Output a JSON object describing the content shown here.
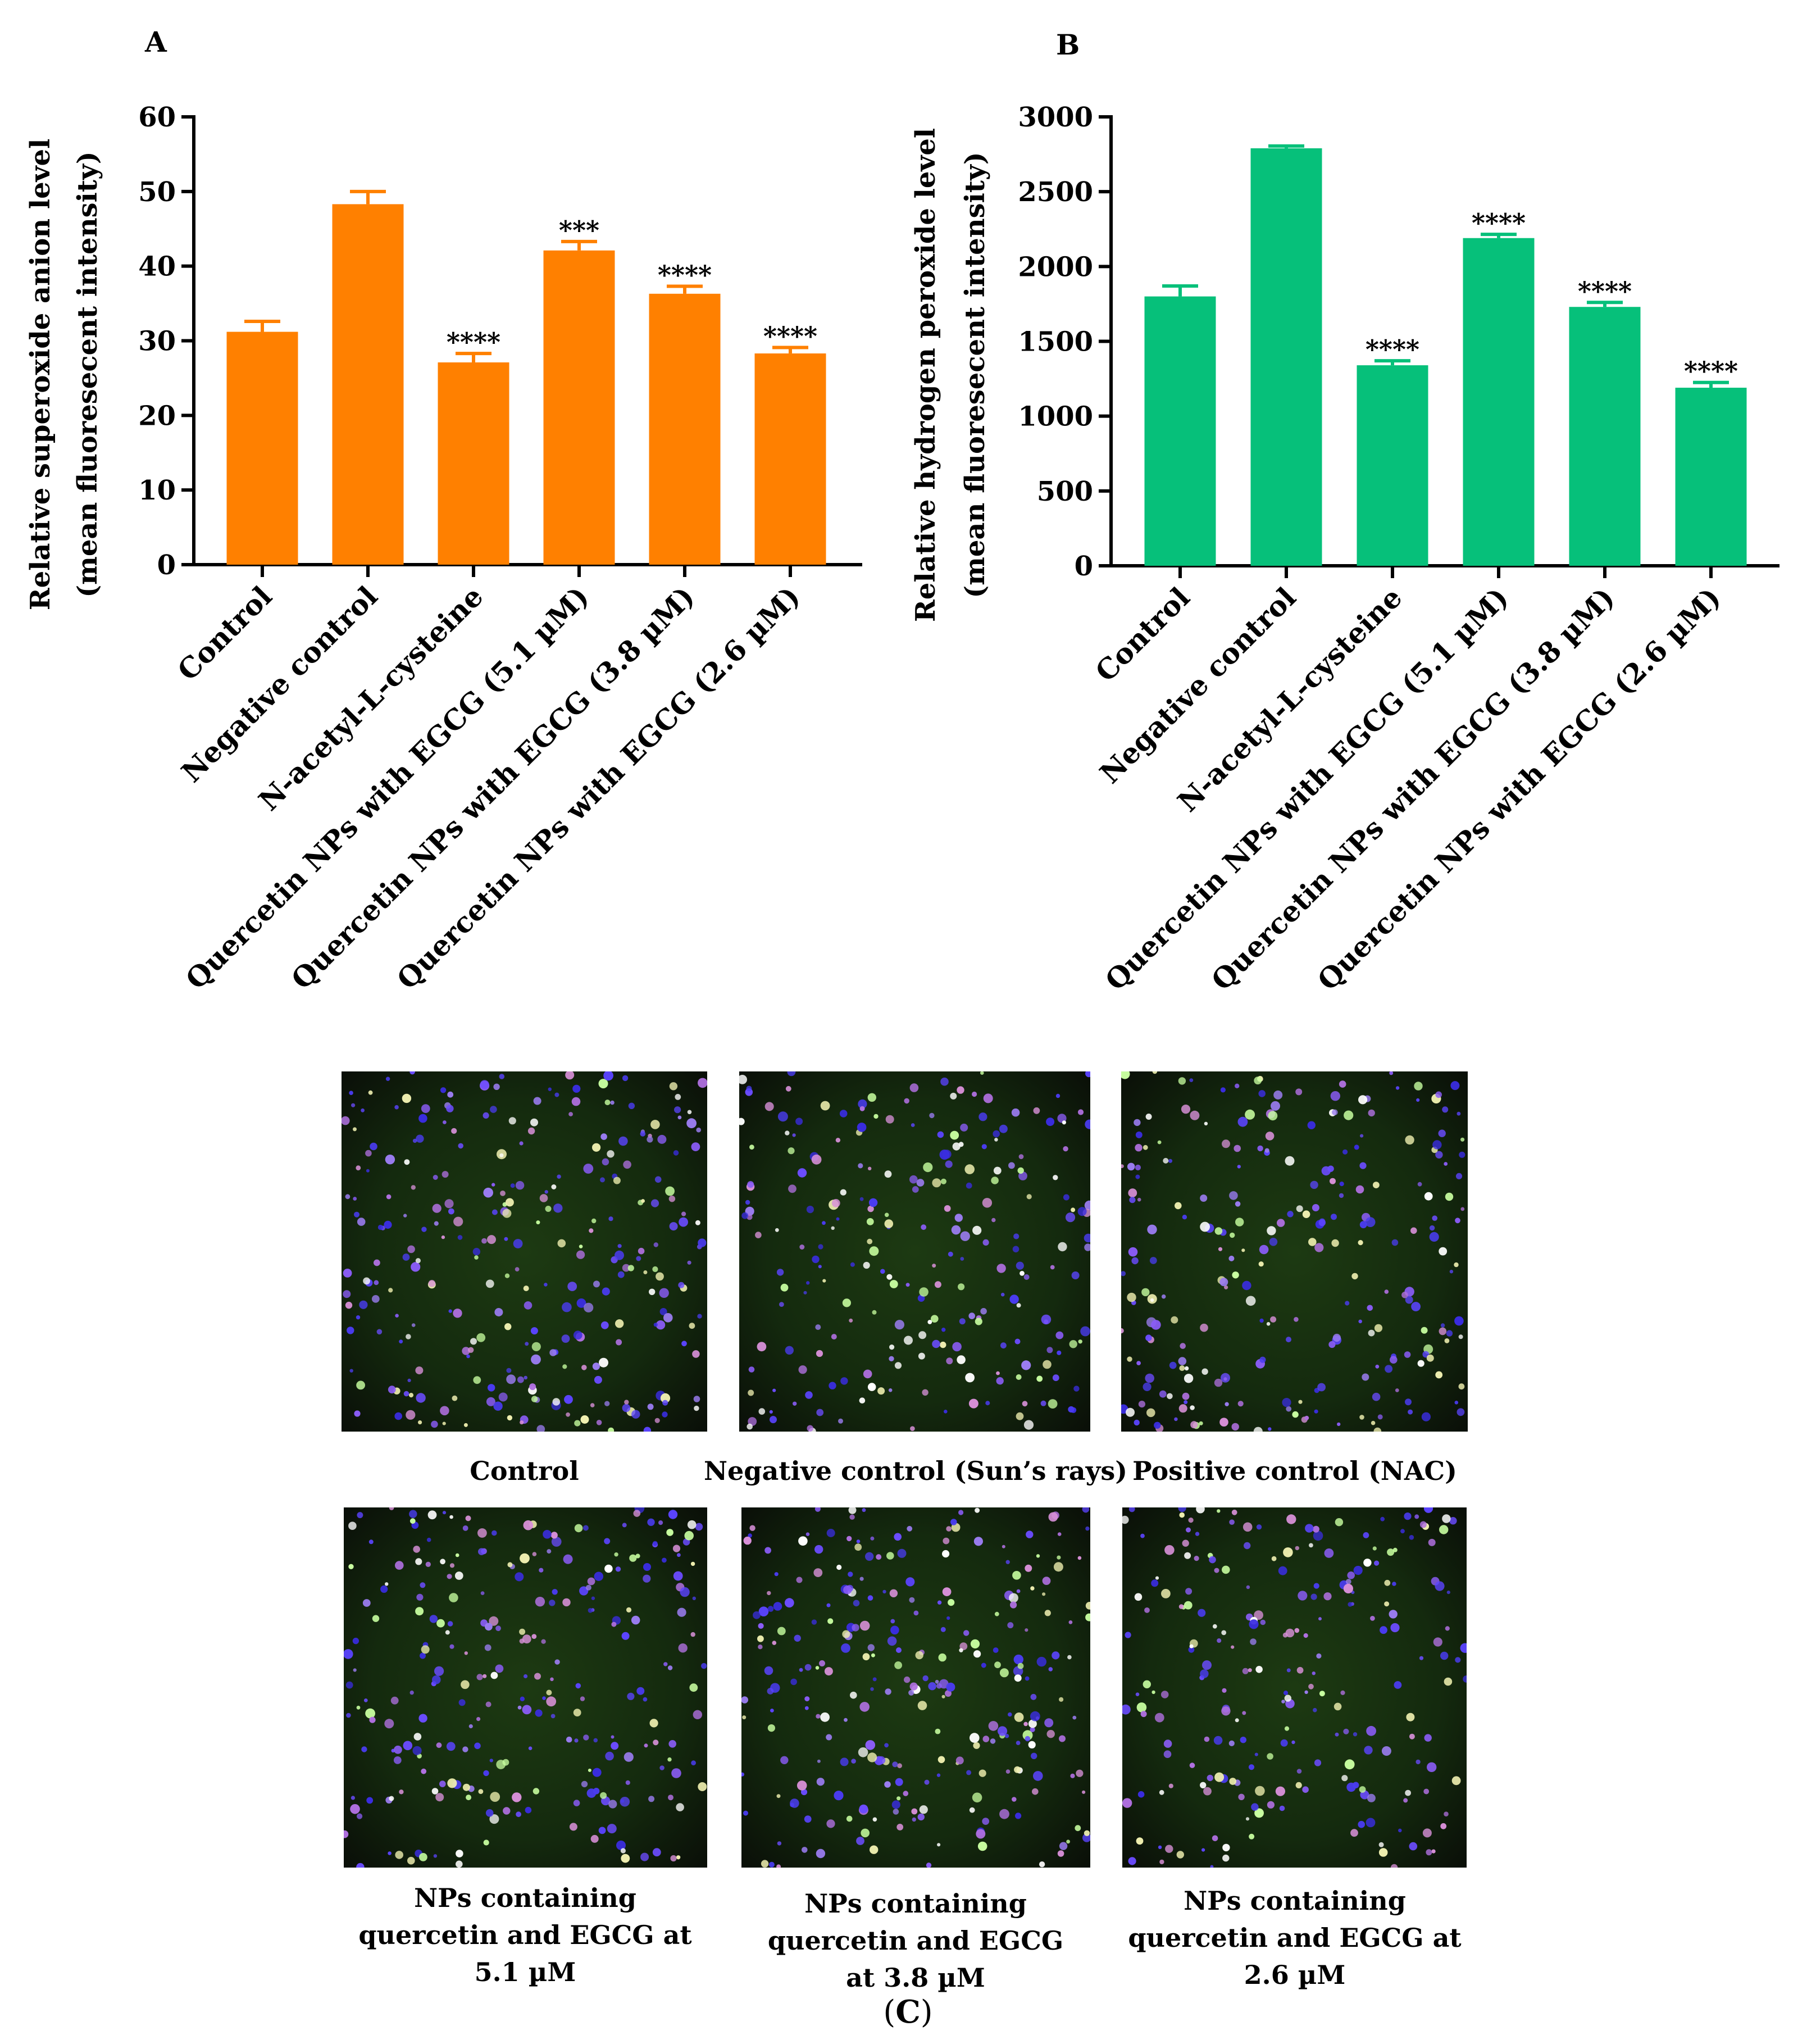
{
  "panelA": {
    "letter": "A",
    "chart_data": {
      "type": "bar",
      "categories": [
        "Control",
        "Negative control",
        "N-acetyl-L-cysteine",
        "Quercetin NPs with EGCG (5.1 µM)",
        "Quercetin NPs with EGCG (3.8 µM)",
        "Quercetin NPs with EGCG (2.6 µM)"
      ],
      "values": [
        31.2,
        48.3,
        27.1,
        42.1,
        36.3,
        28.3
      ],
      "errors": [
        1.4,
        1.7,
        1.2,
        1.2,
        1.0,
        0.8
      ],
      "significance": [
        "",
        "",
        "****",
        "***",
        "****",
        "****"
      ],
      "ylabel_line1": "Relative superoxide anion level",
      "ylabel_line2": "(mean fluoresecent intensity)",
      "ylim": [
        0,
        60
      ],
      "yticks": [
        0,
        10,
        20,
        30,
        40,
        50,
        60
      ],
      "bar_color": "#FF8000",
      "grid": false
    }
  },
  "panelB": {
    "letter": "B",
    "chart_data": {
      "type": "bar",
      "categories": [
        "Control",
        "Negative control",
        "N-acetyl-L-cysteine",
        "Quercetin NPs with EGCG (5.1 µM)",
        "Quercetin NPs with EGCG (3.8 µM)",
        "Quercetin NPs with EGCG (2.6 µM)"
      ],
      "values": [
        1800,
        2790,
        1340,
        2190,
        1730,
        1190
      ],
      "errors": [
        70,
        15,
        30,
        25,
        30,
        35
      ],
      "significance": [
        "",
        "",
        "****",
        "****",
        "****",
        "****"
      ],
      "ylabel_line1": "Relative hydrogen peroxide level",
      "ylabel_line2": "(mean fluoresecent intensity)",
      "ylim": [
        0,
        3000
      ],
      "yticks": [
        0,
        500,
        1000,
        1500,
        2000,
        2500,
        3000
      ],
      "bar_color": "#06C07A",
      "grid": false
    }
  },
  "panelC": {
    "letter": "C",
    "images": [
      {
        "caption": [
          "Control"
        ]
      },
      {
        "caption": [
          "Negative control (Sun’s rays)"
        ]
      },
      {
        "caption": [
          "Positive control (NAC)"
        ]
      },
      {
        "caption": [
          "NPs containing",
          "quercetin and EGCG at",
          "5.1 µM"
        ]
      },
      {
        "caption": [
          "NPs containing",
          "quercetin and EGCG",
          "at 3.8 µM"
        ]
      },
      {
        "caption": [
          "NPs containing",
          "quercetin and EGCG at",
          "2.6 µM"
        ]
      }
    ]
  }
}
